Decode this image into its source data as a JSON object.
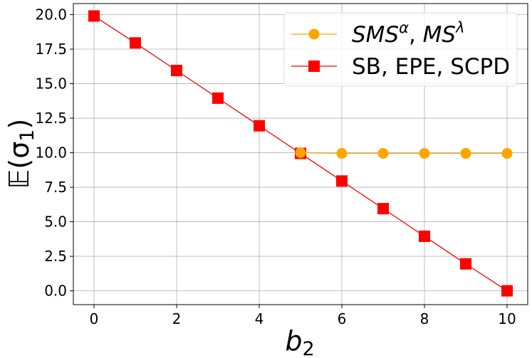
{
  "chart_data": {
    "type": "line",
    "xlabel_base": "b",
    "xlabel_sub": "2",
    "ylabel_base": "𝔼(σ",
    "ylabel_sub": "1",
    "ylabel_close": ")",
    "xlim": [
      -0.5,
      10.5
    ],
    "ylim": [
      -1.0,
      20.8
    ],
    "xticks": [
      0,
      2,
      4,
      6,
      8,
      10
    ],
    "xtick_labels": [
      "0",
      "2",
      "4",
      "6",
      "8",
      "10"
    ],
    "yticks": [
      0,
      2.5,
      5,
      7.5,
      10,
      12.5,
      15,
      17.5,
      20
    ],
    "ytick_labels": [
      "0.0",
      "2.5",
      "5.0",
      "7.5",
      "10.0",
      "12.5",
      "15.0",
      "17.5",
      "20.0"
    ],
    "grid": true,
    "legend_position": "top-right",
    "series": [
      {
        "name_parts": [
          {
            "t": "SMS",
            "italic": true
          },
          {
            "t": "α",
            "italic": true,
            "sup": true
          },
          {
            "t": ", ",
            "italic": false
          },
          {
            "t": "MS",
            "italic": true
          },
          {
            "t": "λ",
            "italic": true,
            "sup": true
          }
        ],
        "color": "#FFA500",
        "marker": "circle",
        "x": [
          5,
          6,
          7,
          8,
          9,
          10
        ],
        "y": [
          10.0,
          9.95,
          9.95,
          9.95,
          9.95,
          9.95
        ]
      },
      {
        "name_parts": [
          {
            "t": "SB, EPE, SCPD",
            "italic": false
          }
        ],
        "color": "#FF0000",
        "marker": "square",
        "x": [
          0,
          1,
          2,
          3,
          4,
          5,
          6,
          7,
          8,
          9,
          10
        ],
        "y": [
          19.9,
          17.95,
          15.95,
          13.95,
          11.95,
          9.95,
          7.95,
          5.95,
          3.95,
          1.95,
          0.0
        ]
      }
    ]
  }
}
